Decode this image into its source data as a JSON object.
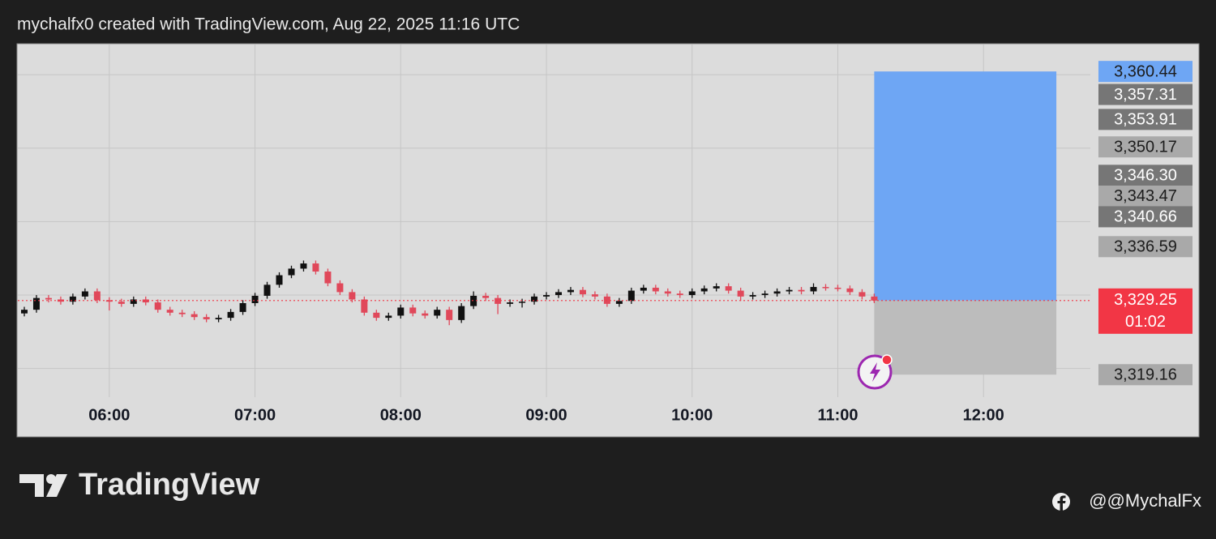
{
  "chart_data": {
    "type": "candlestick",
    "title": "mychalfx0 created with TradingView.com, Aug 22, 2025 11:16 UTC",
    "brand": "TradingView",
    "credit": "@@MychalFx",
    "up_color": "#111111",
    "down_color": "#e0485a",
    "grid": true,
    "xlim": [
      "05:22",
      "12:44"
    ],
    "ylim": [
      3316.1,
      3364.1
    ],
    "xticks": [
      "06:00",
      "07:00",
      "08:00",
      "09:00",
      "10:00",
      "11:00",
      "12:00"
    ],
    "ygrid": [
      3320,
      3330,
      3340,
      3350,
      3360
    ],
    "x": [
      "05:25",
      "05:30",
      "05:35",
      "05:40",
      "05:45",
      "05:50",
      "05:55",
      "06:00",
      "06:05",
      "06:10",
      "06:15",
      "06:20",
      "06:25",
      "06:30",
      "06:35",
      "06:40",
      "06:45",
      "06:50",
      "06:55",
      "07:00",
      "07:05",
      "07:10",
      "07:15",
      "07:20",
      "07:25",
      "07:30",
      "07:35",
      "07:40",
      "07:45",
      "07:50",
      "07:55",
      "08:00",
      "08:05",
      "08:10",
      "08:15",
      "08:20",
      "08:25",
      "08:30",
      "08:35",
      "08:40",
      "08:45",
      "08:50",
      "08:55",
      "09:00",
      "09:05",
      "09:10",
      "09:15",
      "09:20",
      "09:25",
      "09:30",
      "09:35",
      "09:40",
      "09:45",
      "09:50",
      "09:55",
      "10:00",
      "10:05",
      "10:10",
      "10:15",
      "10:20",
      "10:25",
      "10:30",
      "10:35",
      "10:40",
      "10:45",
      "10:50",
      "10:55",
      "11:00",
      "11:05",
      "11:10",
      "11:15"
    ],
    "open": [
      3327.5,
      3328.0,
      3329.6,
      3329.4,
      3329.1,
      3329.8,
      3330.5,
      3329.3,
      3329.1,
      3328.8,
      3329.4,
      3329.0,
      3328.0,
      3327.6,
      3327.4,
      3327.0,
      3326.7,
      3326.9,
      3327.7,
      3328.9,
      3329.9,
      3331.4,
      3332.7,
      3333.6,
      3334.3,
      3333.2,
      3331.6,
      3330.4,
      3329.4,
      3327.6,
      3326.9,
      3327.2,
      3328.3,
      3327.5,
      3327.2,
      3328.0,
      3326.6,
      3328.5,
      3329.9,
      3329.6,
      3328.8,
      3329.0,
      3329.1,
      3329.8,
      3330.0,
      3330.4,
      3330.7,
      3330.1,
      3329.8,
      3328.8,
      3329.2,
      3330.6,
      3331.0,
      3330.5,
      3330.2,
      3330.0,
      3330.5,
      3330.9,
      3331.2,
      3330.6,
      3329.8,
      3330.0,
      3330.2,
      3330.5,
      3330.7,
      3330.5,
      3331.1,
      3331.0,
      3330.9,
      3330.4,
      3329.8
    ],
    "high": [
      3328.4,
      3330.0,
      3330.0,
      3329.8,
      3330.2,
      3330.9,
      3330.9,
      3329.7,
      3329.5,
      3329.8,
      3329.8,
      3329.4,
      3328.4,
      3328.0,
      3327.8,
      3327.4,
      3327.3,
      3328.1,
      3329.3,
      3330.3,
      3331.8,
      3333.1,
      3334.0,
      3334.7,
      3334.7,
      3333.6,
      3332.0,
      3330.8,
      3329.8,
      3328.0,
      3327.6,
      3328.7,
      3328.7,
      3327.9,
      3328.4,
      3328.4,
      3328.9,
      3330.5,
      3330.3,
      3330.0,
      3329.4,
      3329.5,
      3330.2,
      3330.4,
      3330.8,
      3331.1,
      3331.1,
      3330.5,
      3330.2,
      3329.6,
      3331.0,
      3331.4,
      3331.4,
      3330.9,
      3330.6,
      3330.9,
      3331.3,
      3331.6,
      3331.6,
      3331.0,
      3330.4,
      3330.6,
      3330.9,
      3331.1,
      3331.1,
      3331.6,
      3331.5,
      3331.4,
      3331.3,
      3330.8,
      3330.2
    ],
    "low": [
      3327.1,
      3327.6,
      3329.0,
      3328.7,
      3328.7,
      3329.4,
      3328.9,
      3327.9,
      3328.4,
      3328.4,
      3328.6,
      3327.6,
      3327.2,
      3327.0,
      3326.6,
      3326.3,
      3326.3,
      3326.5,
      3327.3,
      3328.5,
      3329.5,
      3331.0,
      3332.3,
      3333.2,
      3332.8,
      3331.2,
      3330.0,
      3329.0,
      3327.2,
      3326.5,
      3326.5,
      3326.8,
      3327.1,
      3326.8,
      3326.8,
      3325.9,
      3326.2,
      3328.1,
      3329.2,
      3327.4,
      3328.4,
      3328.3,
      3328.7,
      3329.4,
      3329.6,
      3330.0,
      3329.7,
      3329.4,
      3328.4,
      3328.4,
      3328.8,
      3330.2,
      3330.1,
      3329.8,
      3329.6,
      3329.6,
      3330.1,
      3330.5,
      3330.2,
      3329.2,
      3329.4,
      3329.6,
      3329.8,
      3330.1,
      3330.1,
      3330.1,
      3330.6,
      3330.5,
      3330.0,
      3329.4,
      3328.9
    ],
    "close": [
      3328.0,
      3329.6,
      3329.4,
      3329.1,
      3329.8,
      3330.5,
      3329.3,
      3329.1,
      3328.8,
      3329.4,
      3329.0,
      3328.0,
      3327.6,
      3327.4,
      3327.0,
      3326.7,
      3326.9,
      3327.7,
      3328.9,
      3329.9,
      3331.4,
      3332.7,
      3333.6,
      3334.3,
      3333.2,
      3331.6,
      3330.4,
      3329.4,
      3327.6,
      3326.9,
      3327.2,
      3328.3,
      3327.5,
      3327.2,
      3328.0,
      3326.6,
      3328.5,
      3329.9,
      3329.6,
      3328.8,
      3329.0,
      3329.1,
      3329.8,
      3330.0,
      3330.4,
      3330.7,
      3330.1,
      3329.8,
      3328.8,
      3329.2,
      3330.6,
      3331.0,
      3330.5,
      3330.2,
      3330.0,
      3330.5,
      3330.9,
      3331.2,
      3330.6,
      3329.8,
      3330.0,
      3330.2,
      3330.5,
      3330.7,
      3330.5,
      3331.1,
      3331.0,
      3330.9,
      3330.4,
      3329.8,
      3329.25
    ],
    "position": {
      "start": "11:15",
      "end": "12:30",
      "entry": 3329.25,
      "target": 3360.44,
      "stop": 3319.16,
      "target_color": "#6ea6f4",
      "stop_color": "#bcbcbc"
    },
    "last_price": {
      "value": 3329.25,
      "label": "3,329.25",
      "countdown": "01:02",
      "color": "#f23645"
    },
    "price_labels": [
      {
        "value": 3360.44,
        "label": "3,360.44",
        "color": "#6ea6f4"
      },
      {
        "value": 3357.31,
        "label": "3,357.31",
        "color": "#767676"
      },
      {
        "value": 3353.91,
        "label": "3,353.91",
        "color": "#767676"
      },
      {
        "value": 3350.17,
        "label": "3,350.17",
        "color": "#a9a9a9"
      },
      {
        "value": 3346.3,
        "label": "3,346.30",
        "color": "#767676"
      },
      {
        "value": 3343.47,
        "label": "3,343.47",
        "color": "#a9a9a9"
      },
      {
        "value": 3340.66,
        "label": "3,340.66",
        "color": "#767676"
      },
      {
        "value": 3336.59,
        "label": "3,336.59",
        "color": "#a9a9a9"
      },
      {
        "value": 3319.16,
        "label": "3,319.16",
        "color": "#a9a9a9"
      }
    ]
  }
}
